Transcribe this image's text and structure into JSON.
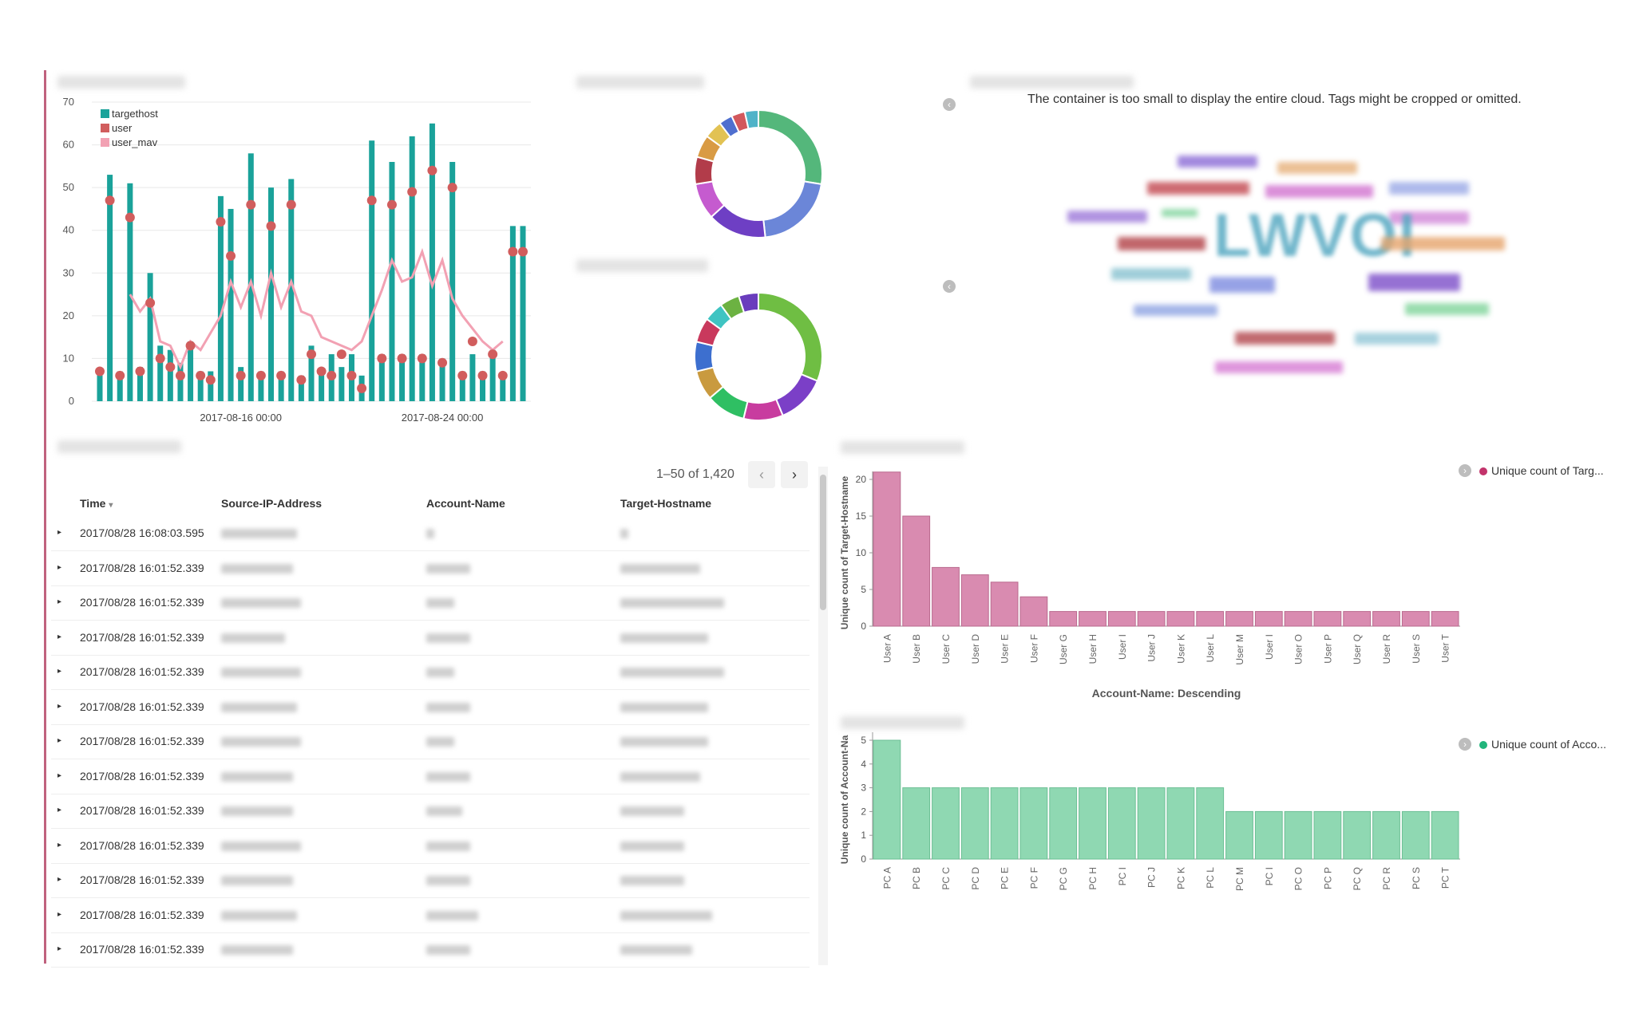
{
  "line_chart": {
    "legend": [
      "targethost",
      "user",
      "user_mav"
    ],
    "x_ticks": [
      "2017-08-16 00:00",
      "2017-08-24 00:00"
    ],
    "y_ticks": [
      "0",
      "10",
      "20",
      "30",
      "40",
      "50",
      "60",
      "70"
    ]
  },
  "cloud": {
    "message": "The container is too small to display the entire cloud. Tags might be cropped or omitted.",
    "big_tag": "LWVOI"
  },
  "table": {
    "range": "1–50 of 1,420",
    "headers": [
      "Time",
      "Source-IP-Address",
      "Account-Name",
      "Target-Hostname"
    ],
    "sort_indicator": "▾",
    "rows": [
      "2017/08/28 16:08:03.595",
      "2017/08/28 16:01:52.339",
      "2017/08/28 16:01:52.339",
      "2017/08/28 16:01:52.339",
      "2017/08/28 16:01:52.339",
      "2017/08/28 16:01:52.339",
      "2017/08/28 16:01:52.339",
      "2017/08/28 16:01:52.339",
      "2017/08/28 16:01:52.339",
      "2017/08/28 16:01:52.339",
      "2017/08/28 16:01:52.339",
      "2017/08/28 16:01:52.339",
      "2017/08/28 16:01:52.339"
    ]
  },
  "bar_top": {
    "legend": "Unique count of Targ...",
    "ylabel": "Unique count of Target-Hostname",
    "xlabel": "Account-Name: Descending"
  },
  "bar_bottom": {
    "legend": "Unique count of Acco...",
    "ylabel": "Unique count of Account-Na"
  },
  "colors": {
    "teal": "#1aa29a",
    "red": "#d15d5d",
    "pink_line": "#f2a1b3",
    "pink_bar": "#d98bb0",
    "green_bar": "#8fd8b2"
  },
  "chart_data": [
    {
      "type": "bar",
      "title": "",
      "x_ticks": [
        "2017-08-16 00:00",
        "2017-08-24 00:00"
      ],
      "ylim": [
        0,
        70
      ],
      "series": [
        {
          "name": "targethost",
          "values": [
            7,
            53,
            7,
            51,
            8,
            30,
            13,
            12,
            9,
            14,
            7,
            7,
            48,
            45,
            8,
            58,
            7,
            50,
            7,
            52,
            6,
            13,
            7,
            11,
            8,
            11,
            6,
            61,
            11,
            56,
            11,
            62,
            11,
            65,
            10,
            56,
            7,
            11,
            7,
            12,
            6,
            41,
            41
          ]
        },
        {
          "name": "user",
          "values": [
            7,
            47,
            6,
            43,
            7,
            23,
            10,
            8,
            6,
            13,
            6,
            5,
            42,
            34,
            6,
            46,
            6,
            41,
            6,
            46,
            5,
            11,
            7,
            6,
            11,
            6,
            3,
            47,
            10,
            46,
            10,
            49,
            10,
            54,
            9,
            50,
            6,
            14,
            6,
            11,
            6,
            35,
            35
          ]
        },
        {
          "name": "user_mav",
          "values": [
            null,
            null,
            null,
            25,
            21,
            24,
            14,
            13,
            8,
            14,
            12,
            16,
            20,
            28,
            22,
            28,
            20,
            30,
            22,
            28,
            21,
            20,
            15,
            14,
            13,
            12,
            14,
            20,
            26,
            33,
            28,
            29,
            35,
            27,
            33,
            24,
            20,
            17,
            14,
            12,
            14,
            null,
            null
          ]
        }
      ]
    },
    {
      "type": "pie",
      "title": "",
      "colors": [
        "#54b77b",
        "#6b86d8",
        "#6e3fc4",
        "#c55bcf",
        "#b23c4a",
        "#d99b44",
        "#e2c253",
        "#4f6fcf",
        "#d2585c",
        "#4fb3c8"
      ],
      "values": [
        24,
        18,
        13,
        8,
        6,
        5,
        4,
        3,
        3,
        3
      ]
    },
    {
      "type": "pie",
      "title": "",
      "colors": [
        "#6fbe43",
        "#7b3fc7",
        "#c83c9f",
        "#2fbf63",
        "#c99a3f",
        "#3d6fcf",
        "#c9395d",
        "#3fc4c2",
        "#6cb242",
        "#6a3dbd"
      ],
      "values": [
        25,
        10,
        8,
        8,
        6,
        6,
        5,
        4,
        4,
        4
      ]
    },
    {
      "type": "bar",
      "title": "",
      "categories": [
        "User A",
        "User B",
        "User C",
        "User D",
        "User E",
        "User F",
        "User G",
        "User H",
        "User I",
        "User J",
        "User K",
        "User L",
        "User M",
        "User I",
        "User O",
        "User P",
        "User Q",
        "User R",
        "User S",
        "User T"
      ],
      "values": [
        21,
        15,
        8,
        7,
        6,
        4,
        2,
        2,
        2,
        2,
        2,
        2,
        2,
        2,
        2,
        2,
        2,
        2,
        2,
        2
      ],
      "ylabel": "Unique count of Target-Hostname",
      "xlabel": "Account-Name: Descending",
      "ylim": [
        0,
        20
      ],
      "yticks": [
        0,
        5,
        10,
        15,
        20
      ]
    },
    {
      "type": "bar",
      "title": "",
      "categories": [
        "PC A",
        "PC B",
        "PC C",
        "PC D",
        "PC E",
        "PC F",
        "PC G",
        "PC H",
        "PC I",
        "PC J",
        "PC K",
        "PC L",
        "PC M",
        "PC I",
        "PC O",
        "PC P",
        "PC Q",
        "PC R",
        "PC S",
        "PC T"
      ],
      "values": [
        5,
        3,
        3,
        3,
        3,
        3,
        3,
        3,
        3,
        3,
        3,
        3,
        2,
        2,
        2,
        2,
        2,
        2,
        2,
        2
      ],
      "ylabel": "Unique count of Account-Na",
      "ylim": [
        0,
        5
      ],
      "yticks": [
        0,
        1,
        2,
        3,
        4,
        5
      ]
    }
  ]
}
